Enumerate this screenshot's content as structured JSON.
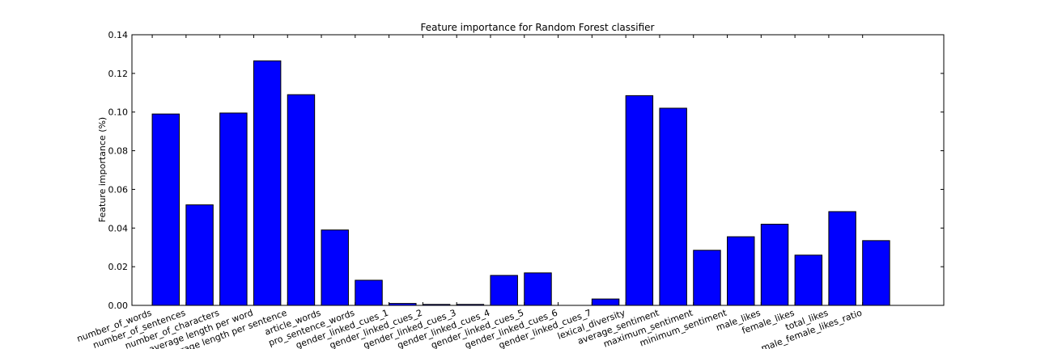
{
  "chart_data": {
    "type": "bar",
    "title": "Feature importance for Random Forest classifier",
    "xlabel": "",
    "ylabel": "Feature importance (%)",
    "ylim": [
      0,
      0.14
    ],
    "yticks": [
      "0.00",
      "0.02",
      "0.04",
      "0.06",
      "0.08",
      "0.10",
      "0.12",
      "0.14"
    ],
    "grid": false,
    "bar_color": "#0000ff",
    "categories": [
      "number_of_words",
      "number_of_sentences",
      "number_of_characters",
      "average length per word",
      "average length per sentence",
      "article_words",
      "pro_sentence_words",
      "gender_linked_cues_1",
      "gender_linked_cues_2",
      "gender_linked_cues_3",
      "gender_linked_cues_4",
      "gender_linked_cues_5",
      "gender_linked_cues_6",
      "gender_linked_cues_7",
      "lexical_diversity",
      "average_sentiment",
      "maximum_sentiment",
      "minimum_sentiment",
      "male_likes",
      "female_likes",
      "total_likes",
      "male_female_likes_ratio"
    ],
    "values": [
      0.099,
      0.052,
      0.0995,
      0.1265,
      0.109,
      0.039,
      0.013,
      0.001,
      0.0005,
      0.0005,
      0.0155,
      0.0168,
      0.0,
      0.0033,
      0.1085,
      0.102,
      0.0285,
      0.0355,
      0.042,
      0.026,
      0.0485,
      0.0335
    ]
  }
}
